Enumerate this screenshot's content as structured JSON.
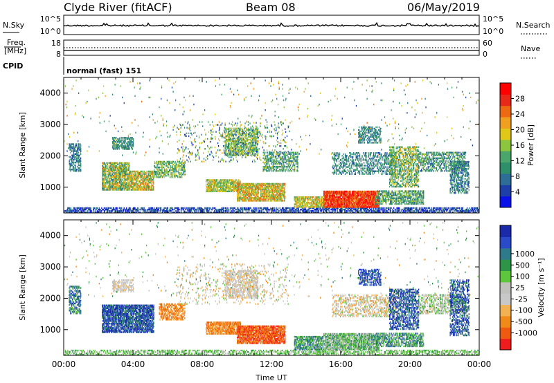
{
  "header": {
    "station": "Clyde River (fitACF)",
    "beam": "Beam 08",
    "date": "06/May/2019"
  },
  "top_panels": {
    "nsky_label": "N.Sky",
    "nsky_ticks": [
      "10^5",
      "10^0"
    ],
    "nsearch_label": "N.Search",
    "nsearch_ticks": [
      "10^5",
      "10^0"
    ],
    "freq_label_1": "Freq.",
    "freq_label_2": "[MHz]",
    "freq_ticks": [
      "18",
      "8"
    ],
    "nave_label": "Nave",
    "nave_ticks": [
      "60",
      "0"
    ],
    "cpid_label": "CPID",
    "cpid_text": "normal (fast) 151"
  },
  "colors": {
    "power_scale": [
      "#0a10e8",
      "#1f3fa8",
      "#2e6e96",
      "#2e8f6a",
      "#4aa66a",
      "#8cc63f",
      "#e0c818",
      "#f0a020",
      "#ee6a12",
      "#e82818",
      "#ff0000"
    ],
    "velocity_scale": [
      "#ee1c1c",
      "#ee5a10",
      "#f08a18",
      "#f2b254",
      "#c8c8c8",
      "#c0c0bc",
      "#5ec63c",
      "#2e9448",
      "#2e7a8a",
      "#2a4ac8",
      "#1a2aa8"
    ]
  },
  "chart_data": [
    {
      "type": "heatmap",
      "panel": "power",
      "ylabel": "Slant Range [km]",
      "yticks": [
        "1000",
        "2000",
        "3000",
        "4000"
      ],
      "ylim": [
        180,
        4500
      ],
      "xlim": [
        0,
        24
      ],
      "colorbar_label": "Power [dB]",
      "colorbar_ticks": [
        "4",
        "8",
        "12",
        "16",
        "20",
        "24",
        "28"
      ],
      "colorbar_range": [
        0,
        32
      ],
      "regions": [
        {
          "t0": 0.0,
          "t1": 24.0,
          "r0": 180,
          "r1": 350,
          "density": 0.55,
          "value": 5,
          "spread": 4
        },
        {
          "t0": 0.3,
          "t1": 1.0,
          "r0": 1500,
          "r1": 2400,
          "density": 0.5,
          "value": 8,
          "spread": 4
        },
        {
          "t0": 2.2,
          "t1": 3.8,
          "r0": 900,
          "r1": 1800,
          "density": 0.75,
          "value": 16,
          "spread": 8
        },
        {
          "t0": 3.8,
          "t1": 5.2,
          "r0": 900,
          "r1": 1500,
          "density": 0.7,
          "value": 18,
          "spread": 8
        },
        {
          "t0": 2.8,
          "t1": 4.0,
          "r0": 2200,
          "r1": 2600,
          "density": 0.55,
          "value": 10,
          "spread": 4
        },
        {
          "t0": 5.2,
          "t1": 7.0,
          "r0": 1300,
          "r1": 1800,
          "density": 0.55,
          "value": 14,
          "spread": 6
        },
        {
          "t0": 8.2,
          "t1": 10.2,
          "r0": 850,
          "r1": 1250,
          "density": 0.75,
          "value": 17,
          "spread": 6
        },
        {
          "t0": 9.3,
          "t1": 11.2,
          "r0": 2000,
          "r1": 2900,
          "density": 0.55,
          "value": 14,
          "spread": 7
        },
        {
          "t0": 10.0,
          "t1": 12.8,
          "r0": 550,
          "r1": 1100,
          "density": 0.75,
          "value": 19,
          "spread": 7
        },
        {
          "t0": 11.5,
          "t1": 13.5,
          "r0": 1500,
          "r1": 2100,
          "density": 0.45,
          "value": 12,
          "spread": 6
        },
        {
          "t0": 13.3,
          "t1": 15.0,
          "r0": 350,
          "r1": 700,
          "density": 0.7,
          "value": 18,
          "spread": 6
        },
        {
          "t0": 15.0,
          "t1": 18.2,
          "r0": 350,
          "r1": 850,
          "density": 0.85,
          "value": 27,
          "spread": 4
        },
        {
          "t0": 18.0,
          "t1": 20.8,
          "r0": 450,
          "r1": 900,
          "density": 0.6,
          "value": 12,
          "spread": 6
        },
        {
          "t0": 15.5,
          "t1": 19.2,
          "r0": 1400,
          "r1": 2100,
          "density": 0.35,
          "value": 9,
          "spread": 4
        },
        {
          "t0": 17.0,
          "t1": 18.3,
          "r0": 2400,
          "r1": 2900,
          "density": 0.45,
          "value": 9,
          "spread": 3
        },
        {
          "t0": 18.8,
          "t1": 20.5,
          "r0": 1000,
          "r1": 2300,
          "density": 0.5,
          "value": 14,
          "spread": 7
        },
        {
          "t0": 20.5,
          "t1": 23.2,
          "r0": 1500,
          "r1": 2100,
          "density": 0.45,
          "value": 11,
          "spread": 6
        },
        {
          "t0": 22.3,
          "t1": 23.4,
          "r0": 800,
          "r1": 1800,
          "density": 0.45,
          "value": 9,
          "spread": 5
        },
        {
          "t0": 6.5,
          "t1": 13.0,
          "r0": 1800,
          "r1": 3100,
          "density": 0.08,
          "value": 12,
          "spread": 10
        },
        {
          "t0": 0.0,
          "t1": 24.0,
          "r0": 2000,
          "r1": 4400,
          "density": 0.012,
          "value": 14,
          "spread": 10
        }
      ]
    },
    {
      "type": "heatmap",
      "panel": "velocity",
      "ylabel": "Slant Range [km]",
      "yticks": [
        "1000",
        "2000",
        "3000",
        "4000"
      ],
      "ylim": [
        180,
        4500
      ],
      "xlim": [
        0,
        24
      ],
      "xlabel": "Time UT",
      "xticks": [
        "00:00",
        "04:00",
        "08:00",
        "12:00",
        "16:00",
        "20:00",
        "00:00"
      ],
      "colorbar_label": "Velocity [m s⁻¹]",
      "colorbar_ticks": [
        "-1000",
        "-500",
        "-100",
        "-25",
        "25",
        "100",
        "500",
        "1000"
      ],
      "regions": [
        {
          "t0": 0.0,
          "t1": 24.0,
          "r0": 180,
          "r1": 350,
          "density": 0.45,
          "value": 6,
          "spread": 1
        },
        {
          "t0": 0.3,
          "t1": 1.0,
          "r0": 1500,
          "r1": 2400,
          "density": 0.5,
          "value": 8,
          "spread": 2
        },
        {
          "t0": 2.2,
          "t1": 5.2,
          "r0": 900,
          "r1": 1800,
          "density": 0.75,
          "value": 9,
          "spread": 2
        },
        {
          "t0": 2.8,
          "t1": 4.0,
          "r0": 2200,
          "r1": 2600,
          "density": 0.5,
          "value": 4,
          "spread": 1
        },
        {
          "t0": 5.5,
          "t1": 7.0,
          "r0": 1300,
          "r1": 1800,
          "density": 0.55,
          "value": 2,
          "spread": 1
        },
        {
          "t0": 8.2,
          "t1": 10.2,
          "r0": 850,
          "r1": 1250,
          "density": 0.75,
          "value": 2,
          "spread": 1
        },
        {
          "t0": 9.3,
          "t1": 11.2,
          "r0": 2000,
          "r1": 2900,
          "density": 0.55,
          "value": 4,
          "spread": 1
        },
        {
          "t0": 10.0,
          "t1": 12.8,
          "r0": 550,
          "r1": 1100,
          "density": 0.8,
          "value": 1,
          "spread": 1
        },
        {
          "t0": 13.3,
          "t1": 15.0,
          "r0": 350,
          "r1": 800,
          "density": 0.7,
          "value": 7,
          "spread": 2
        },
        {
          "t0": 15.0,
          "t1": 18.2,
          "r0": 350,
          "r1": 850,
          "density": 0.8,
          "value": 6,
          "spread": 2
        },
        {
          "t0": 18.0,
          "t1": 20.8,
          "r0": 450,
          "r1": 900,
          "density": 0.6,
          "value": 7,
          "spread": 2
        },
        {
          "t0": 15.5,
          "t1": 19.2,
          "r0": 1400,
          "r1": 2100,
          "density": 0.35,
          "value": 4,
          "spread": 2
        },
        {
          "t0": 17.0,
          "t1": 18.3,
          "r0": 2400,
          "r1": 2900,
          "density": 0.45,
          "value": 9,
          "spread": 1
        },
        {
          "t0": 18.8,
          "t1": 20.5,
          "r0": 1000,
          "r1": 2300,
          "density": 0.5,
          "value": 9,
          "spread": 2
        },
        {
          "t0": 20.5,
          "t1": 23.2,
          "r0": 1500,
          "r1": 2100,
          "density": 0.45,
          "value": 5,
          "spread": 2
        },
        {
          "t0": 22.3,
          "t1": 23.4,
          "r0": 800,
          "r1": 2600,
          "density": 0.45,
          "value": 9,
          "spread": 2
        },
        {
          "t0": 6.5,
          "t1": 13.0,
          "r0": 1800,
          "r1": 3100,
          "density": 0.08,
          "value": 4,
          "spread": 2
        },
        {
          "t0": 0.0,
          "t1": 24.0,
          "r0": 2000,
          "r1": 4400,
          "density": 0.012,
          "value": 5,
          "spread": 3
        }
      ]
    }
  ]
}
